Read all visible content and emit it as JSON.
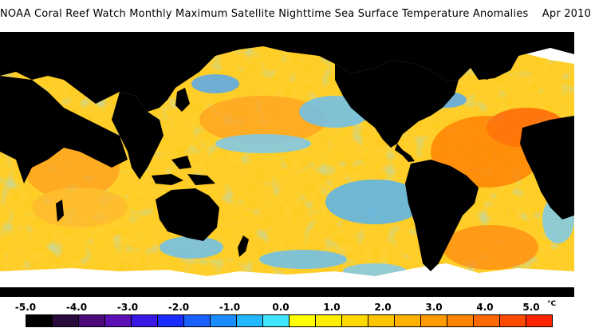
{
  "header": {
    "title": "NOAA Coral Reef Watch Monthly Maximum Satellite Nighttime Sea Surface Temperature Anomalies",
    "date": "Apr 2010"
  },
  "legend": {
    "unit": "°C",
    "tick_labels": [
      "-5.0",
      "-4.0",
      "-3.0",
      "-2.0",
      "-1.0",
      "0.0",
      "1.0",
      "2.0",
      "3.0",
      "4.0",
      "5.0"
    ],
    "colors": [
      "#000000",
      "#2a0a3c",
      "#4a0a78",
      "#5a10b4",
      "#3a18e6",
      "#1a2cff",
      "#1a60ff",
      "#1a8cff",
      "#22b8ff",
      "#40e4ff",
      "#ffff00",
      "#ffee00",
      "#ffd800",
      "#ffc400",
      "#ffb000",
      "#ff9a00",
      "#ff8400",
      "#ff6a00",
      "#ff4a00",
      "#ff2400"
    ]
  },
  "map": {
    "land_color": "#000000",
    "ice_color": "#ffffff",
    "ocean_base_color": "#ffd030"
  }
}
